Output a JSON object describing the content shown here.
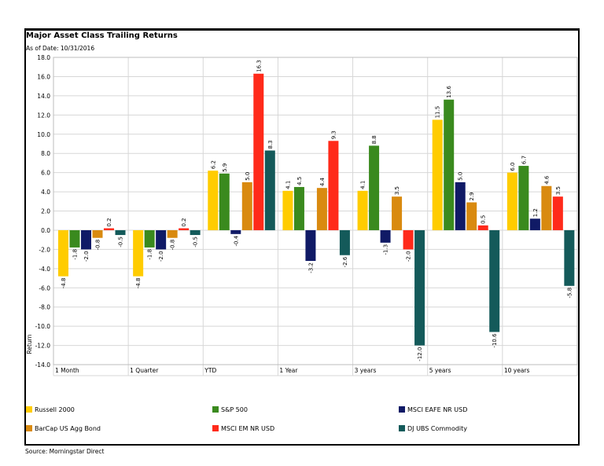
{
  "header": {
    "title": "Major Asset Class Trailing Returns",
    "as_of": "As of Date: 10/31/2016"
  },
  "footer": {
    "source": "Source: Morningstar Direct"
  },
  "chart_data": {
    "type": "bar",
    "title": "Major Asset Class Trailing Returns",
    "xlabel": "",
    "ylabel": "Return",
    "ylim": [
      -14.0,
      18.0
    ],
    "ytick_step": 2,
    "ytick_labels": [
      "18.0",
      "16.0",
      "14.0",
      "12.0",
      "10.0",
      "8.0",
      "6.0",
      "4.0",
      "2.0",
      "0.0",
      "-2.0",
      "-4.0",
      "-6.0",
      "-8.0",
      "-10.0",
      "-12.0",
      "-14.0"
    ],
    "grid": true,
    "legend_position": "bottom",
    "categories": [
      "1 Month",
      "1 Quarter",
      "YTD",
      "1 Year",
      "3 years",
      "5 years",
      "10 years"
    ],
    "series": [
      {
        "name": "Russell 2000",
        "color": "#FFCC00",
        "values": [
          -4.8,
          -4.8,
          6.2,
          4.1,
          4.1,
          11.5,
          6.0
        ]
      },
      {
        "name": "S&P 500",
        "color": "#3A8A1E",
        "values": [
          -1.8,
          -1.8,
          5.9,
          4.5,
          8.8,
          13.6,
          6.7
        ]
      },
      {
        "name": "MSCI EAFE NR USD",
        "color": "#101A66",
        "values": [
          -2.0,
          -2.0,
          -0.4,
          -3.2,
          -1.3,
          5.0,
          1.2
        ]
      },
      {
        "name": "BarCap US Agg Bond",
        "color": "#D98A10",
        "values": [
          -0.8,
          -0.8,
          5.0,
          4.4,
          3.5,
          2.9,
          4.6
        ]
      },
      {
        "name": "MSCI EM NR USD",
        "color": "#FF2A1A",
        "values": [
          0.2,
          0.2,
          16.3,
          9.3,
          -2.0,
          0.5,
          3.5
        ]
      },
      {
        "name": "DJ UBS Commodity",
        "color": "#145A5A",
        "values": [
          -0.5,
          -0.5,
          8.3,
          -2.6,
          -12.0,
          -10.6,
          -5.8
        ]
      }
    ]
  }
}
